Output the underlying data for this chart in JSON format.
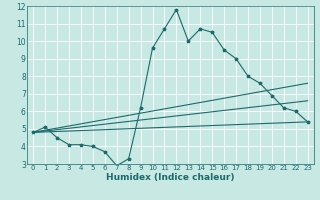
{
  "title": "",
  "xlabel": "Humidex (Indice chaleur)",
  "xlim": [
    -0.5,
    23.5
  ],
  "ylim": [
    3,
    12
  ],
  "yticks": [
    3,
    4,
    5,
    6,
    7,
    8,
    9,
    10,
    11,
    12
  ],
  "xticks": [
    0,
    1,
    2,
    3,
    4,
    5,
    6,
    7,
    8,
    9,
    10,
    11,
    12,
    13,
    14,
    15,
    16,
    17,
    18,
    19,
    20,
    21,
    22,
    23
  ],
  "bg_color": "#c8e8e4",
  "line_color": "#1a6b6b",
  "grid_color": "#ffffff",
  "line1_x": [
    0,
    1,
    2,
    3,
    4,
    5,
    6,
    7,
    8,
    9,
    10,
    11,
    12,
    13,
    14,
    15,
    16,
    17,
    18,
    19,
    20,
    21,
    22,
    23
  ],
  "line1_y": [
    4.8,
    5.1,
    4.5,
    4.1,
    4.1,
    4.0,
    3.7,
    2.9,
    3.3,
    6.2,
    9.6,
    10.7,
    11.8,
    10.0,
    10.7,
    10.5,
    9.5,
    9.0,
    8.0,
    7.6,
    6.9,
    6.2,
    6.0,
    5.4
  ],
  "line2_x": [
    0,
    23
  ],
  "line2_y": [
    4.8,
    7.6
  ],
  "line3_x": [
    0,
    23
  ],
  "line3_y": [
    4.8,
    6.6
  ],
  "line4_x": [
    0,
    23
  ],
  "line4_y": [
    4.8,
    5.4
  ]
}
